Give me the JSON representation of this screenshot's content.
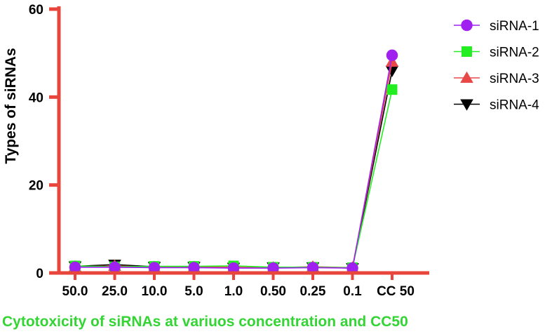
{
  "chart_data": {
    "type": "line",
    "categories": [
      "50.0",
      "25.0",
      "10.0",
      "5.0",
      "1.0",
      "0.50",
      "0.25",
      "0.1",
      "CC 50"
    ],
    "xlabel": "Cytotoxicity of siRNAs at variuos concentration and CC50",
    "ylabel": "Types of siRNAs",
    "ylim": [
      0,
      60
    ],
    "yticks": [
      0,
      20,
      40,
      60
    ],
    "legend_position": "top-right",
    "axis_color": "#e8463c",
    "xlabel_color": "#34d434",
    "series": [
      {
        "name": "siRNA-1",
        "marker": "circle",
        "color": "#a020f0",
        "values": [
          1.3,
          1.3,
          1.2,
          1.2,
          1.1,
          1.1,
          1.2,
          1.1,
          49.5
        ]
      },
      {
        "name": "siRNA-2",
        "marker": "square",
        "color": "#22ee22",
        "values": [
          1.6,
          1.4,
          1.5,
          1.5,
          1.6,
          1.3,
          1.3,
          1.2,
          41.7
        ]
      },
      {
        "name": "siRNA-3",
        "marker": "triangle-up",
        "color": "#e84848",
        "values": [
          1.4,
          1.6,
          1.3,
          1.3,
          1.3,
          1.2,
          1.4,
          1.2,
          48.0
        ]
      },
      {
        "name": "siRNA-4",
        "marker": "triangle-down",
        "color": "#000000",
        "values": [
          1.5,
          1.9,
          1.4,
          1.4,
          1.2,
          1.3,
          1.3,
          1.1,
          46.0
        ]
      }
    ]
  }
}
